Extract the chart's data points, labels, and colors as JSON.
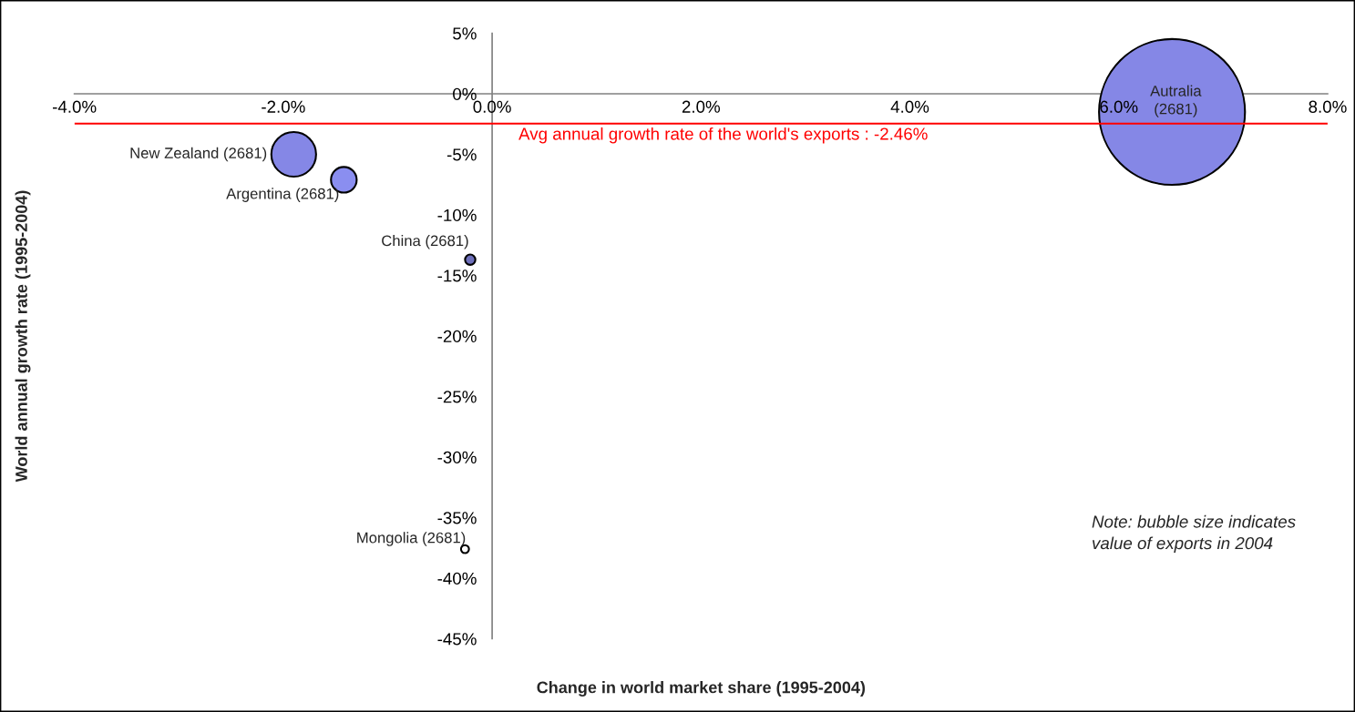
{
  "chart_data": {
    "type": "bubble",
    "xlabel": "Change in world market share (1995-2004)",
    "ylabel": "World annual growth rate (1995-2004)",
    "x": [
      6.51,
      -1.9,
      -1.42,
      -0.21,
      -0.26
    ],
    "values": [
      -1.5,
      -5.0,
      -7.1,
      -13.7,
      -37.6
    ],
    "sizes": [
      1,
      0.094,
      0.031,
      0.005,
      0.003
    ],
    "colors": [
      "#8587e6",
      "#8587e6",
      "#8a8ef0",
      "#6e70bb",
      "#ffffff"
    ],
    "xlim": [
      -4,
      8
    ],
    "xticks": [
      {
        "value": -4,
        "label": "-4.0%"
      },
      {
        "value": -2,
        "label": "-2.0%"
      },
      {
        "value": 0,
        "label": "0.0%"
      },
      {
        "value": 2,
        "label": "2.0%"
      },
      {
        "value": 4,
        "label": "4.0%"
      },
      {
        "value": 6,
        "label": "6.0%"
      },
      {
        "value": 8,
        "label": "8.0%"
      }
    ],
    "ylim": [
      -45,
      5
    ],
    "yticks": [
      {
        "value": 5,
        "label": "5%"
      },
      {
        "value": 0,
        "label": "0%"
      },
      {
        "value": -5,
        "label": "-5%"
      },
      {
        "value": -10,
        "label": "-10%"
      },
      {
        "value": -15,
        "label": "-15%"
      },
      {
        "value": -20,
        "label": "-20%"
      },
      {
        "value": -25,
        "label": "-25%"
      },
      {
        "value": -30,
        "label": "-30%"
      },
      {
        "value": -35,
        "label": "-35%"
      },
      {
        "value": -40,
        "label": "-40%"
      },
      {
        "value": -45,
        "label": "-45%"
      }
    ],
    "ref_lines": [
      {
        "axis": "y",
        "value": -2.46,
        "label": "Avg annual growth rate of the world's exports : -2.46%",
        "color": "#ff0000"
      }
    ],
    "annotations": [
      {
        "text": "Autralia\n(2681)",
        "x": 6.51,
        "y": -1.5
      },
      {
        "text": "New Zealand (2681)",
        "x": -1.9,
        "y": -5.0
      },
      {
        "text": "Argentina (2681)",
        "x": -1.42,
        "y": -7.1
      },
      {
        "text": "China (2681)",
        "x": -0.21,
        "y": -13.7
      },
      {
        "text": "Mongolia (2681)",
        "x": -0.26,
        "y": -37.6
      },
      "Note: bubble size indicates\nvalue of exports in 2004"
    ]
  }
}
